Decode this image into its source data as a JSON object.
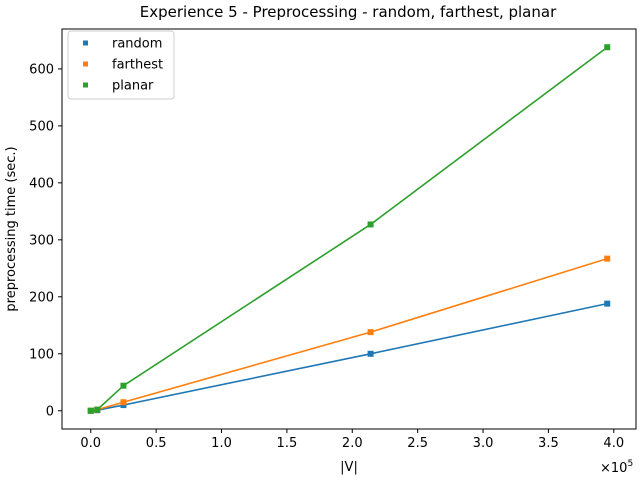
{
  "chart_data": {
    "type": "line",
    "title": "Experience 5 - Preprocessing - random, farthest, planar",
    "xlabel": "|V|",
    "ylabel": "preprocessing time (sec.)",
    "x_offset_label": "×10^5",
    "x_multiplier": 100000,
    "x": [
      0,
      5000,
      25000,
      214000,
      395000
    ],
    "xlim": [
      -22000,
      417000
    ],
    "ylim": [
      -32,
      670
    ],
    "xticks": [
      0,
      50000,
      100000,
      150000,
      200000,
      250000,
      300000,
      350000,
      400000
    ],
    "xtick_labels": [
      "0.0",
      "0.5",
      "1.0",
      "1.5",
      "2.0",
      "2.5",
      "3.0",
      "3.5",
      "4.0"
    ],
    "yticks": [
      0,
      100,
      200,
      300,
      400,
      500,
      600
    ],
    "ytick_labels": [
      "0",
      "100",
      "200",
      "300",
      "400",
      "500",
      "600"
    ],
    "grid": false,
    "legend_position": "upper-left",
    "series": [
      {
        "name": "random",
        "color": "#1f77b4",
        "marker": "square",
        "values": [
          0,
          1,
          10,
          100,
          188
        ]
      },
      {
        "name": "farthest",
        "color": "#ff7f0e",
        "marker": "square",
        "values": [
          0,
          2,
          15,
          138,
          267
        ]
      },
      {
        "name": "planar",
        "color": "#2ca02c",
        "marker": "square",
        "values": [
          0,
          2,
          44,
          327,
          638
        ]
      }
    ]
  }
}
